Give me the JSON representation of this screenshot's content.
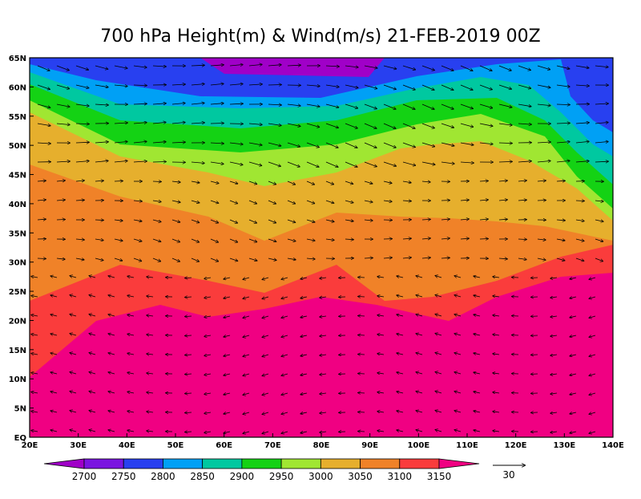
{
  "title": "700 hPa Height(m) & Wind(m/s) 21-FEB-2019 00Z",
  "map": {
    "lat_labels": [
      "65N",
      "60N",
      "55N",
      "50N",
      "45N",
      "40N",
      "35N",
      "30N",
      "25N",
      "20N",
      "15N",
      "10N",
      "5N",
      "EQ"
    ],
    "lon_labels": [
      "20E",
      "30E",
      "40E",
      "50E",
      "60E",
      "70E",
      "80E",
      "90E",
      "100E",
      "110E",
      "120E",
      "130E",
      "140E"
    ]
  },
  "colorbar": {
    "levels": [
      2700,
      2750,
      2800,
      2850,
      2900,
      2950,
      3000,
      3050,
      3100,
      3150
    ],
    "colors": [
      "#a000c8",
      "#7a14e0",
      "#2840f0",
      "#00a0f5",
      "#00c8a0",
      "#14d214",
      "#a0e632",
      "#e6af2d",
      "#f08228",
      "#fa3c3c",
      "#f00082"
    ]
  },
  "wind_reference": {
    "label": "30"
  }
}
